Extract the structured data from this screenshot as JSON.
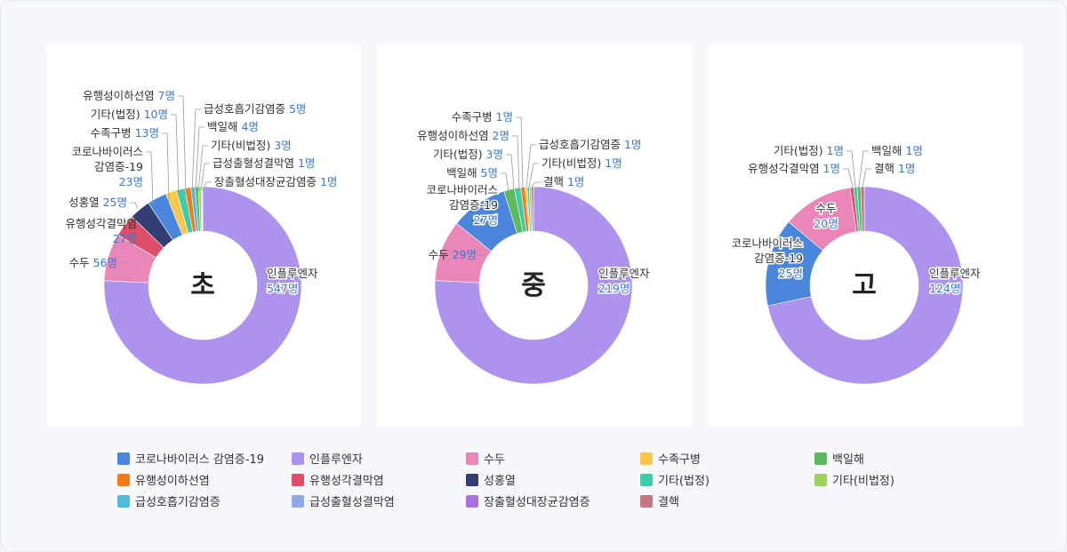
{
  "chart_data": [
    {
      "type": "pie",
      "center_label": "초",
      "slices": [
        {
          "name": "인플루엔자",
          "value": 547,
          "label": "547명"
        },
        {
          "name": "수두",
          "value": 56,
          "label": "56명"
        },
        {
          "name": "유행성각결막염",
          "value": 27,
          "label": "27명"
        },
        {
          "name": "성홍열",
          "value": 25,
          "label": "25명"
        },
        {
          "name": "코로나바이러스 감염증-19",
          "value": 23,
          "label": "23명"
        },
        {
          "name": "수족구병",
          "value": 13,
          "label": "13명"
        },
        {
          "name": "기타(법정)",
          "value": 10,
          "label": "10명"
        },
        {
          "name": "유행성이하선염",
          "value": 7,
          "label": "7명"
        },
        {
          "name": "급성호흡기감염증",
          "value": 5,
          "label": "5명"
        },
        {
          "name": "백일해",
          "value": 4,
          "label": "4명"
        },
        {
          "name": "기타(비법정)",
          "value": 3,
          "label": "3명"
        },
        {
          "name": "급성출혈성결막염",
          "value": 1,
          "label": "1명"
        },
        {
          "name": "장출혈성대장균감염증",
          "value": 1,
          "label": "1명"
        }
      ]
    },
    {
      "type": "pie",
      "center_label": "중",
      "slices": [
        {
          "name": "인플루엔자",
          "value": 219,
          "label": "219명"
        },
        {
          "name": "수두",
          "value": 29,
          "label": "29명"
        },
        {
          "name": "코로나바이러스 감염증-19",
          "value": 27,
          "label": "27명"
        },
        {
          "name": "백일해",
          "value": 5,
          "label": "5명"
        },
        {
          "name": "기타(법정)",
          "value": 3,
          "label": "3명"
        },
        {
          "name": "유행성이하선염",
          "value": 2,
          "label": "2명"
        },
        {
          "name": "수족구병",
          "value": 1,
          "label": "1명"
        },
        {
          "name": "급성호흡기감염증",
          "value": 1,
          "label": "1명"
        },
        {
          "name": "기타(비법정)",
          "value": 1,
          "label": "1명"
        },
        {
          "name": "결핵",
          "value": 1,
          "label": "1명"
        }
      ]
    },
    {
      "type": "pie",
      "center_label": "고",
      "slices": [
        {
          "name": "인플루엔자",
          "value": 124,
          "label": "124명"
        },
        {
          "name": "코로나바이러스 감염증-19",
          "value": 25,
          "label": "25명"
        },
        {
          "name": "수두",
          "value": 20,
          "label": "20명"
        },
        {
          "name": "유행성각결막염",
          "value": 1,
          "label": "1명"
        },
        {
          "name": "기타(법정)",
          "value": 1,
          "label": "1명"
        },
        {
          "name": "백일해",
          "value": 1,
          "label": "1명"
        },
        {
          "name": "결핵",
          "value": 1,
          "label": "1명"
        }
      ]
    }
  ],
  "legend": [
    {
      "name": "코로나바이러스 감염증-19",
      "color": "#4a86dc"
    },
    {
      "name": "인플루엔자",
      "color": "#ad92ee"
    },
    {
      "name": "수두",
      "color": "#ea86b8"
    },
    {
      "name": "수족구병",
      "color": "#fbc84b"
    },
    {
      "name": "백일해",
      "color": "#5cba5c"
    },
    {
      "name": "유행성이하선염",
      "color": "#f57a1c"
    },
    {
      "name": "유행성각결막염",
      "color": "#de4e68"
    },
    {
      "name": "성홍열",
      "color": "#333e74"
    },
    {
      "name": "기타(법정)",
      "color": "#3dcbaa"
    },
    {
      "name": "기타(비법정)",
      "color": "#9ad45e"
    },
    {
      "name": "급성호흡기감염증",
      "color": "#50bcdc"
    },
    {
      "name": "급성출혈성결막염",
      "color": "#8faae6"
    },
    {
      "name": "장출혈성대장균감염증",
      "color": "#a772dc"
    },
    {
      "name": "결핵",
      "color": "#c27882"
    }
  ]
}
